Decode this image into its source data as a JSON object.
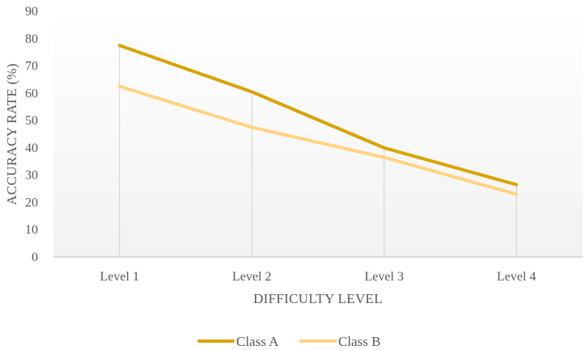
{
  "chart_data": {
    "type": "line",
    "categories": [
      "Level 1",
      "Level 2",
      "Level 3",
      "Level 4"
    ],
    "series": [
      {
        "name": "Class A",
        "values": [
          77.5,
          60.5,
          40,
          26.5
        ],
        "color": "#D9A300"
      },
      {
        "name": "Class B",
        "values": [
          62.5,
          47.5,
          36.5,
          23
        ],
        "color": "#FFD37F"
      }
    ],
    "title": "",
    "xlabel": "DIFFICULTY LEVEL",
    "ylabel": "ACCURACY RATE (%)",
    "ylim": [
      0,
      90
    ],
    "yticks": [
      "0",
      "10",
      "20",
      "30",
      "40",
      "50",
      "60",
      "70",
      "80",
      "90"
    ],
    "grid": false,
    "drop_lines": true,
    "plot_background": "#F2F2F2",
    "legend_position": "bottom"
  }
}
